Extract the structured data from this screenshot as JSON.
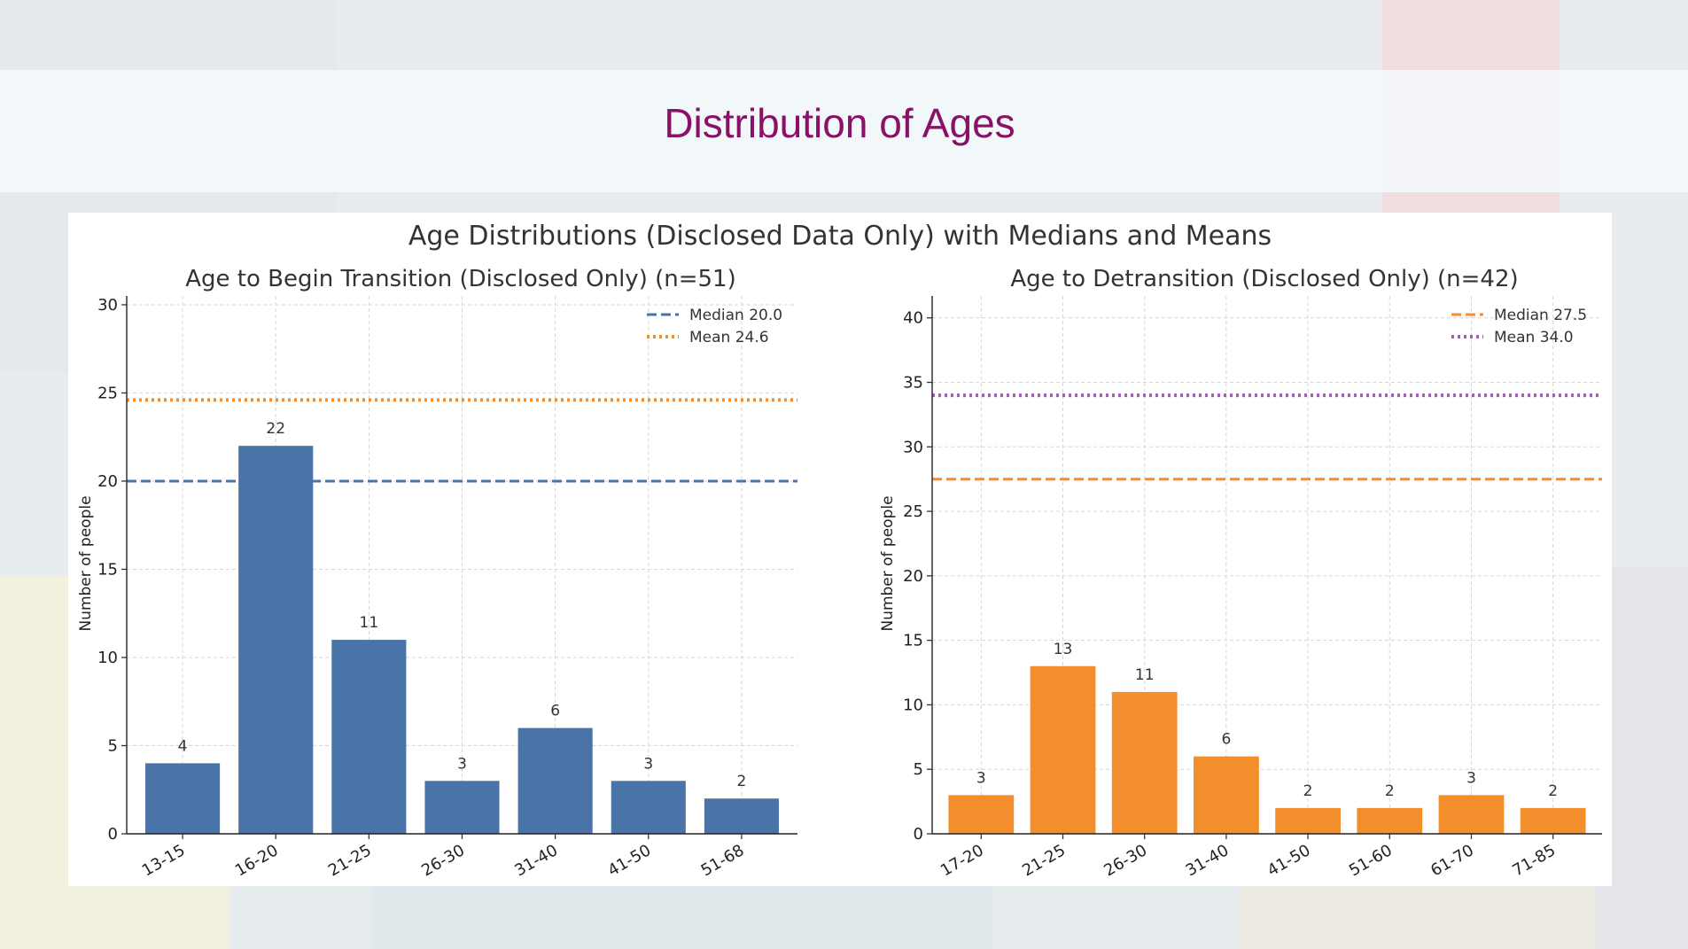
{
  "slide": {
    "title": "Distribution of Ages"
  },
  "colors": {
    "title": "#8a1068",
    "transition_bar": "#4a74a8",
    "detransition_bar": "#f28e2b",
    "median_left": "#4a74a8",
    "mean_left": "#f28e2b",
    "median_right": "#f28e2b",
    "mean_right": "#9e5db8"
  },
  "chart_data": {
    "suptitle": "Age Distributions (Disclosed Data Only) with Medians and Means",
    "charts": [
      {
        "type": "bar",
        "title": "Age to Begin Transition (Disclosed Only) (n=51)",
        "xlabel": "",
        "ylabel": "Number of people",
        "categories": [
          "13-15",
          "16-20",
          "21-25",
          "26-30",
          "31-40",
          "41-50",
          "51-68"
        ],
        "values": [
          4,
          22,
          11,
          3,
          6,
          3,
          2
        ],
        "data_labels": [
          "4",
          "22",
          "11",
          "3",
          "6",
          "3",
          "2"
        ],
        "ylim": [
          0,
          30.5
        ],
        "yticks": [
          0,
          5,
          10,
          15,
          20,
          25,
          30
        ],
        "ytick_labels": [
          "0",
          "5",
          "10",
          "15",
          "20",
          "25",
          "30"
        ],
        "grid": true,
        "legend_position": "top-right",
        "reference_lines": [
          {
            "label": "Median 20.0",
            "value": 20.0,
            "style": "dashed"
          },
          {
            "label": "Mean 24.6",
            "value": 24.6,
            "style": "dotted"
          }
        ]
      },
      {
        "type": "bar",
        "title": "Age to Detransition (Disclosed Only) (n=42)",
        "xlabel": "",
        "ylabel": "Number of people",
        "categories": [
          "17-20",
          "21-25",
          "26-30",
          "31-40",
          "41-50",
          "51-60",
          "61-70",
          "71-85"
        ],
        "values": [
          3,
          13,
          11,
          6,
          2,
          2,
          3,
          2
        ],
        "data_labels": [
          "3",
          "13",
          "11",
          "6",
          "2",
          "2",
          "3",
          "2"
        ],
        "ylim": [
          0,
          41.7
        ],
        "yticks": [
          0,
          5,
          10,
          15,
          20,
          25,
          30,
          35,
          40
        ],
        "ytick_labels": [
          "0",
          "5",
          "10",
          "15",
          "20",
          "25",
          "30",
          "35",
          "40"
        ],
        "grid": true,
        "legend_position": "top-right",
        "reference_lines": [
          {
            "label": "Median 27.5",
            "value": 27.5,
            "style": "dashed"
          },
          {
            "label": "Mean 34.0",
            "value": 34.0,
            "style": "dotted"
          }
        ]
      }
    ]
  }
}
